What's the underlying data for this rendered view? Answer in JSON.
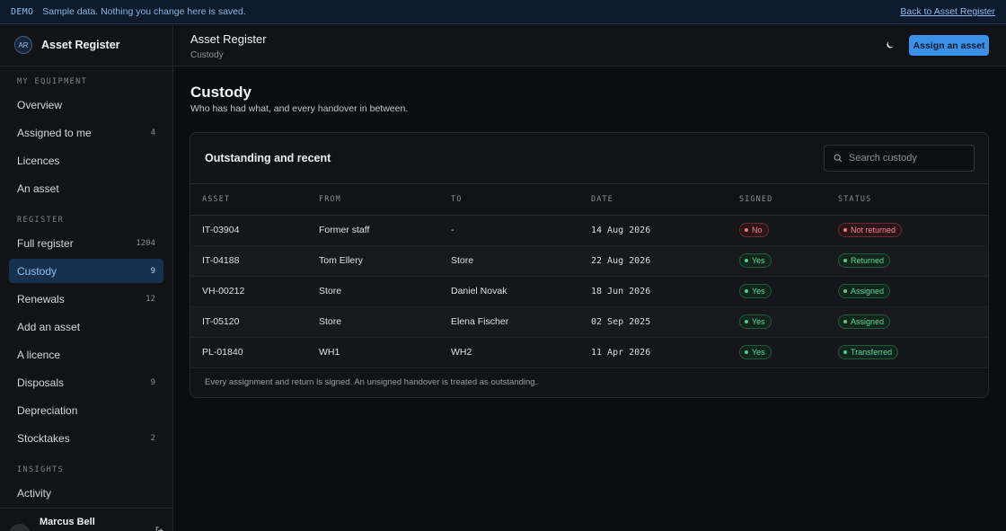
{
  "banner": {
    "tag": "DEMO",
    "message": "Sample data. Nothing you change here is saved.",
    "back_link": "Back to Asset Register"
  },
  "brand": {
    "initials": "AR",
    "name": "Asset Register"
  },
  "nav": {
    "sections": [
      {
        "label": "MY EQUIPMENT",
        "items": [
          {
            "label": "Overview",
            "count": ""
          },
          {
            "label": "Assigned to me",
            "count": "4"
          },
          {
            "label": "Licences",
            "count": ""
          },
          {
            "label": "An asset",
            "count": ""
          }
        ]
      },
      {
        "label": "REGISTER",
        "items": [
          {
            "label": "Full register",
            "count": "1204"
          },
          {
            "label": "Custody",
            "count": "9",
            "active": true
          },
          {
            "label": "Renewals",
            "count": "12"
          },
          {
            "label": "Add an asset",
            "count": ""
          },
          {
            "label": "A licence",
            "count": ""
          },
          {
            "label": "Disposals",
            "count": "9"
          },
          {
            "label": "Depreciation",
            "count": ""
          },
          {
            "label": "Stocktakes",
            "count": "2"
          }
        ]
      },
      {
        "label": "INSIGHTS",
        "items": [
          {
            "label": "Activity",
            "count": ""
          }
        ]
      }
    ]
  },
  "user": {
    "initials": "MB",
    "name": "Marcus Bell",
    "action_icon": "sign-out-icon"
  },
  "topbar": {
    "title": "Asset Register",
    "breadcrumb": "Custody",
    "theme_icon": "moon-icon",
    "assign_label": "Assign an asset"
  },
  "page": {
    "title": "Custody",
    "subtitle": "Who has had what, and every handover in between."
  },
  "card": {
    "heading": "Outstanding and recent",
    "search_placeholder": "Search custody",
    "columns": [
      "ASSET",
      "FROM",
      "TO",
      "DATE",
      "SIGNED",
      "STATUS"
    ],
    "rows": [
      {
        "asset": "IT-03904",
        "from": "Former staff",
        "to": "-",
        "date": "14 Aug 2026",
        "signed": "No",
        "signed_tone": "red",
        "status": "Not returned",
        "status_tone": "red"
      },
      {
        "asset": "IT-04188",
        "from": "Tom Ellery",
        "to": "Store",
        "date": "22 Aug 2026",
        "signed": "Yes",
        "signed_tone": "green",
        "status": "Returned",
        "status_tone": "green"
      },
      {
        "asset": "VH-00212",
        "from": "Store",
        "to": "Daniel Novak",
        "date": "18 Jun 2026",
        "signed": "Yes",
        "signed_tone": "green",
        "status": "Assigned",
        "status_tone": "green"
      },
      {
        "asset": "IT-05120",
        "from": "Store",
        "to": "Elena Fischer",
        "date": "02 Sep 2025",
        "signed": "Yes",
        "signed_tone": "green",
        "status": "Assigned",
        "status_tone": "green"
      },
      {
        "asset": "PL-01840",
        "from": "WH1",
        "to": "WH2",
        "date": "11 Apr 2026",
        "signed": "Yes",
        "signed_tone": "green",
        "status": "Transferred",
        "status_tone": "green"
      }
    ],
    "footnote": "Every assignment and return is signed. An unsigned handover is treated as outstanding."
  },
  "colors": {
    "accent": "#3a92e8",
    "active_nav_bg": "#17304d",
    "danger": "#f07b82",
    "success": "#4fd08f"
  }
}
